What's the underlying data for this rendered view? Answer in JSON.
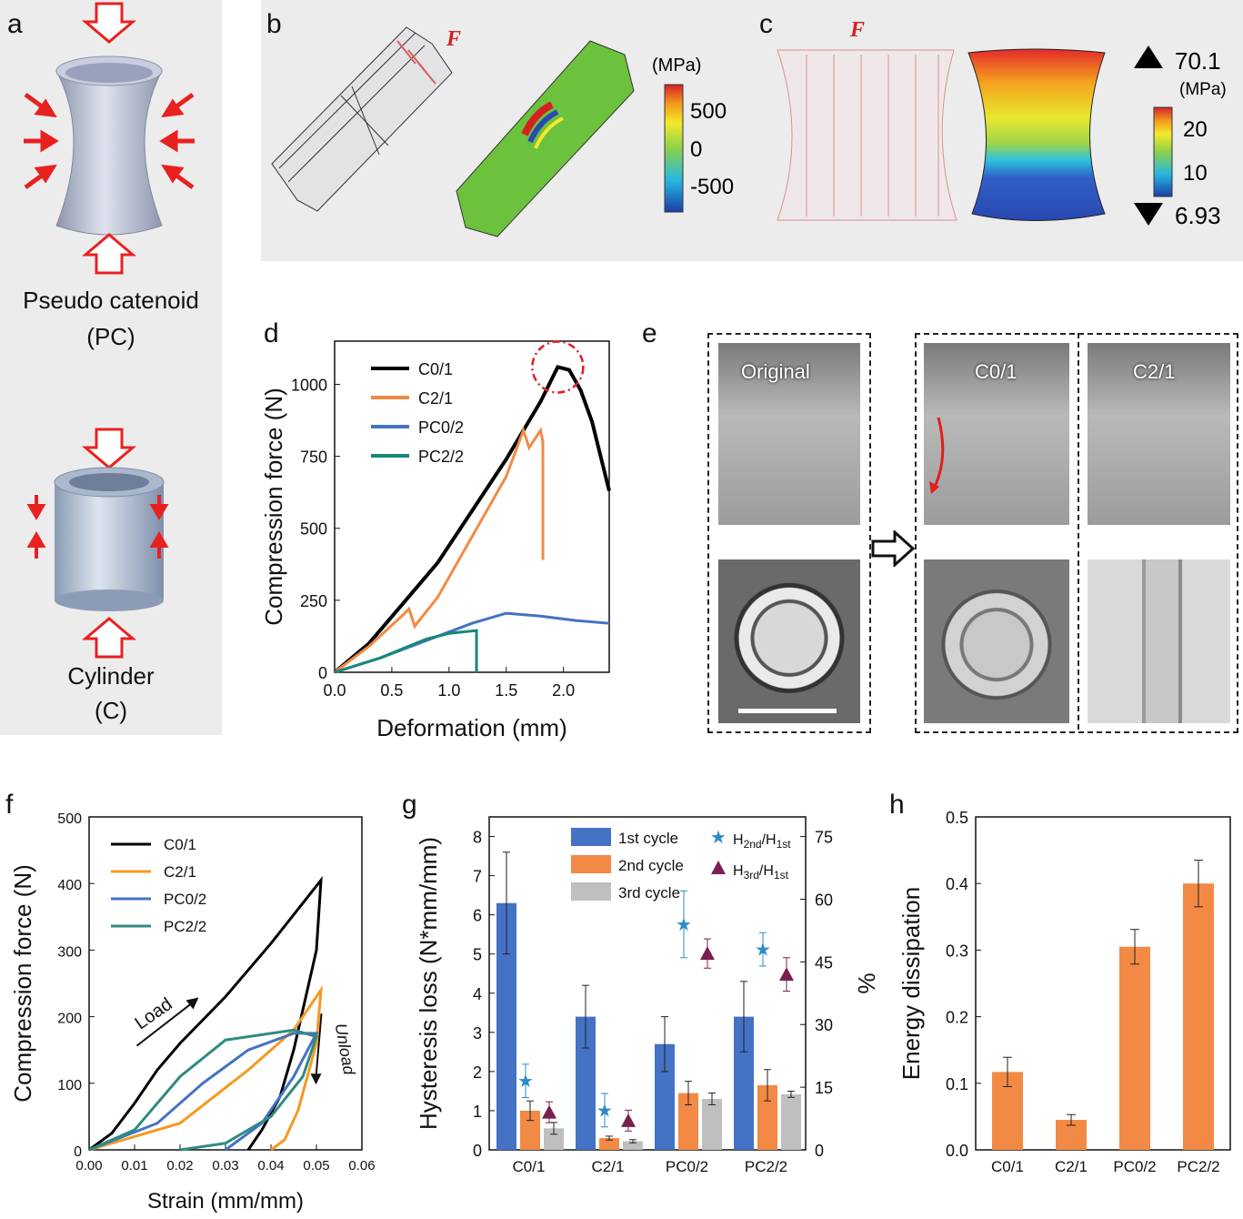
{
  "panel_labels": {
    "a": "a",
    "b": "b",
    "c": "c",
    "d": "d",
    "e": "e",
    "f": "f",
    "g": "g",
    "h": "h"
  },
  "panel_a": {
    "pc_name": "Pseudo catenoid",
    "pc_abbr": "(PC)",
    "c_name": "Cylinder",
    "c_abbr": "(C)",
    "colors": {
      "arrow": "#e8211f",
      "shape": "#aab3c9"
    }
  },
  "panel_b": {
    "force_label": "F",
    "unit": "(MPa)",
    "ticks": [
      "500",
      "0",
      "-500"
    ]
  },
  "panel_c": {
    "force_label": "F",
    "max_label": "70.1",
    "unit": "(MPa)",
    "ticks": [
      "20",
      "10"
    ],
    "min_label": "6.93"
  },
  "panel_e": {
    "original_label": "Original",
    "c01_label": "C0/1",
    "c21_label": "C2/1"
  },
  "chart_data": [
    {
      "id": "d",
      "type": "line",
      "xlabel": "Deformation (mm)",
      "ylabel": "Compression force (N)",
      "xlim": [
        0,
        2.4
      ],
      "ylim": [
        0,
        1150
      ],
      "xticks": [
        "0.0",
        "0.5",
        "1.0",
        "1.5",
        "2.0"
      ],
      "yticks": [
        "0",
        "250",
        "500",
        "750",
        "1000"
      ],
      "legend_position": "top-left",
      "series": [
        {
          "name": "C0/1",
          "color": "#000000",
          "x": [
            0,
            0.3,
            0.6,
            0.9,
            1.2,
            1.5,
            1.8,
            1.95,
            2.05,
            2.15,
            2.25,
            2.4
          ],
          "y": [
            0,
            100,
            240,
            380,
            560,
            740,
            940,
            1060,
            1050,
            980,
            870,
            630
          ]
        },
        {
          "name": "C2/1",
          "color": "#f28a45",
          "x": [
            0,
            0.3,
            0.6,
            0.65,
            0.7,
            0.9,
            1.2,
            1.5,
            1.65,
            1.7,
            1.8,
            1.82,
            1.82
          ],
          "y": [
            0,
            90,
            200,
            220,
            160,
            260,
            470,
            680,
            840,
            780,
            840,
            800,
            390
          ]
        },
        {
          "name": "PC0/2",
          "color": "#4472c4",
          "x": [
            0,
            0.4,
            0.8,
            1.2,
            1.5,
            1.8,
            2.1,
            2.4
          ],
          "y": [
            0,
            50,
            110,
            170,
            205,
            195,
            180,
            170
          ]
        },
        {
          "name": "PC2/2",
          "color": "#19877a",
          "x": [
            0,
            0.4,
            0.8,
            1.0,
            1.24,
            1.24
          ],
          "y": [
            0,
            50,
            115,
            135,
            145,
            0
          ]
        }
      ]
    },
    {
      "id": "f",
      "type": "line",
      "xlabel": "Strain (mm/mm)",
      "ylabel": "Compression force (N)",
      "xlim": [
        0,
        0.06
      ],
      "ylim": [
        0,
        500
      ],
      "xticks": [
        "0.00",
        "0.01",
        "0.02",
        "0.03",
        "0.04",
        "0.05",
        "0.06"
      ],
      "yticks": [
        "0",
        "100",
        "200",
        "300",
        "400",
        "500"
      ],
      "annotations": [
        "Load",
        "Unload"
      ],
      "legend_position": "top-left",
      "series": [
        {
          "name": "C0/1",
          "color": "#000000",
          "x": [
            0.0,
            0.005,
            0.01,
            0.015,
            0.02,
            0.03,
            0.04,
            0.051,
            0.05,
            0.045,
            0.042,
            0.038,
            0.035
          ],
          "y": [
            0,
            25,
            70,
            120,
            160,
            230,
            310,
            405,
            300,
            150,
            80,
            30,
            0
          ]
        },
        {
          "name": "C2/1",
          "color": "#f59a23",
          "x": [
            0.0,
            0.02,
            0.035,
            0.045,
            0.051,
            0.05,
            0.046,
            0.043,
            0.04
          ],
          "y": [
            0,
            40,
            120,
            180,
            240,
            160,
            60,
            15,
            0
          ]
        },
        {
          "name": "PC0/2",
          "color": "#4472c4",
          "x": [
            0.0,
            0.015,
            0.025,
            0.035,
            0.045,
            0.05,
            0.045,
            0.038,
            0.03
          ],
          "y": [
            0,
            40,
            100,
            150,
            175,
            175,
            110,
            40,
            0
          ]
        },
        {
          "name": "PC2/2",
          "color": "#2e8b80",
          "x": [
            0.0,
            0.01,
            0.02,
            0.03,
            0.045,
            0.05,
            0.047,
            0.04,
            0.03,
            0.02
          ],
          "y": [
            0,
            30,
            110,
            165,
            180,
            170,
            110,
            50,
            10,
            0
          ]
        }
      ]
    },
    {
      "id": "g",
      "type": "bar",
      "ylabel": "Hysteresis loss (N*mm/mm)",
      "y2label": "%",
      "categories": [
        "C0/1",
        "C2/1",
        "PC0/2",
        "PC2/2"
      ],
      "ylim": [
        0,
        8.5
      ],
      "y2lim": [
        0,
        79.7
      ],
      "yticks": [
        "0",
        "1",
        "2",
        "3",
        "4",
        "5",
        "6",
        "7",
        "8"
      ],
      "y2ticks": [
        "0",
        "15",
        "30",
        "45",
        "60",
        "75"
      ],
      "series": [
        {
          "name": "1st cycle",
          "color": "#4472c4",
          "values": [
            6.3,
            3.4,
            2.7,
            3.4
          ],
          "err": [
            1.3,
            0.8,
            0.7,
            0.9
          ]
        },
        {
          "name": "2nd cycle",
          "color": "#f28a45",
          "values": [
            1.0,
            0.3,
            1.45,
            1.65
          ],
          "err": [
            0.25,
            0.05,
            0.3,
            0.4
          ]
        },
        {
          "name": "3rd cycle",
          "color": "#bfbfbf",
          "values": [
            0.55,
            0.22,
            1.3,
            1.42
          ],
          "err": [
            0.15,
            0.04,
            0.15,
            0.08
          ]
        }
      ],
      "ratio_series": [
        {
          "name": "H2nd/H1st",
          "color": "#2d8bc8",
          "marker": "star",
          "values": [
            16.5,
            9.5,
            54,
            48
          ],
          "err": [
            4,
            4,
            8,
            4
          ]
        },
        {
          "name": "H3rd/H1st",
          "color": "#7a1f4f",
          "marker": "triangle",
          "values": [
            9.0,
            7.0,
            47,
            42
          ],
          "err": [
            2.5,
            2.5,
            3.5,
            4
          ]
        }
      ]
    },
    {
      "id": "h",
      "type": "bar",
      "ylabel": "Energy dissipation",
      "categories": [
        "C0/1",
        "C2/1",
        "PC0/2",
        "PC2/2"
      ],
      "ylim": [
        0,
        0.5
      ],
      "yticks": [
        "0.0",
        "0.1",
        "0.2",
        "0.3",
        "0.4",
        "0.5"
      ],
      "series": [
        {
          "name": "",
          "color": "#f28a45",
          "values": [
            0.117,
            0.045,
            0.305,
            0.4
          ],
          "err": [
            0.022,
            0.008,
            0.026,
            0.035
          ]
        }
      ]
    }
  ]
}
